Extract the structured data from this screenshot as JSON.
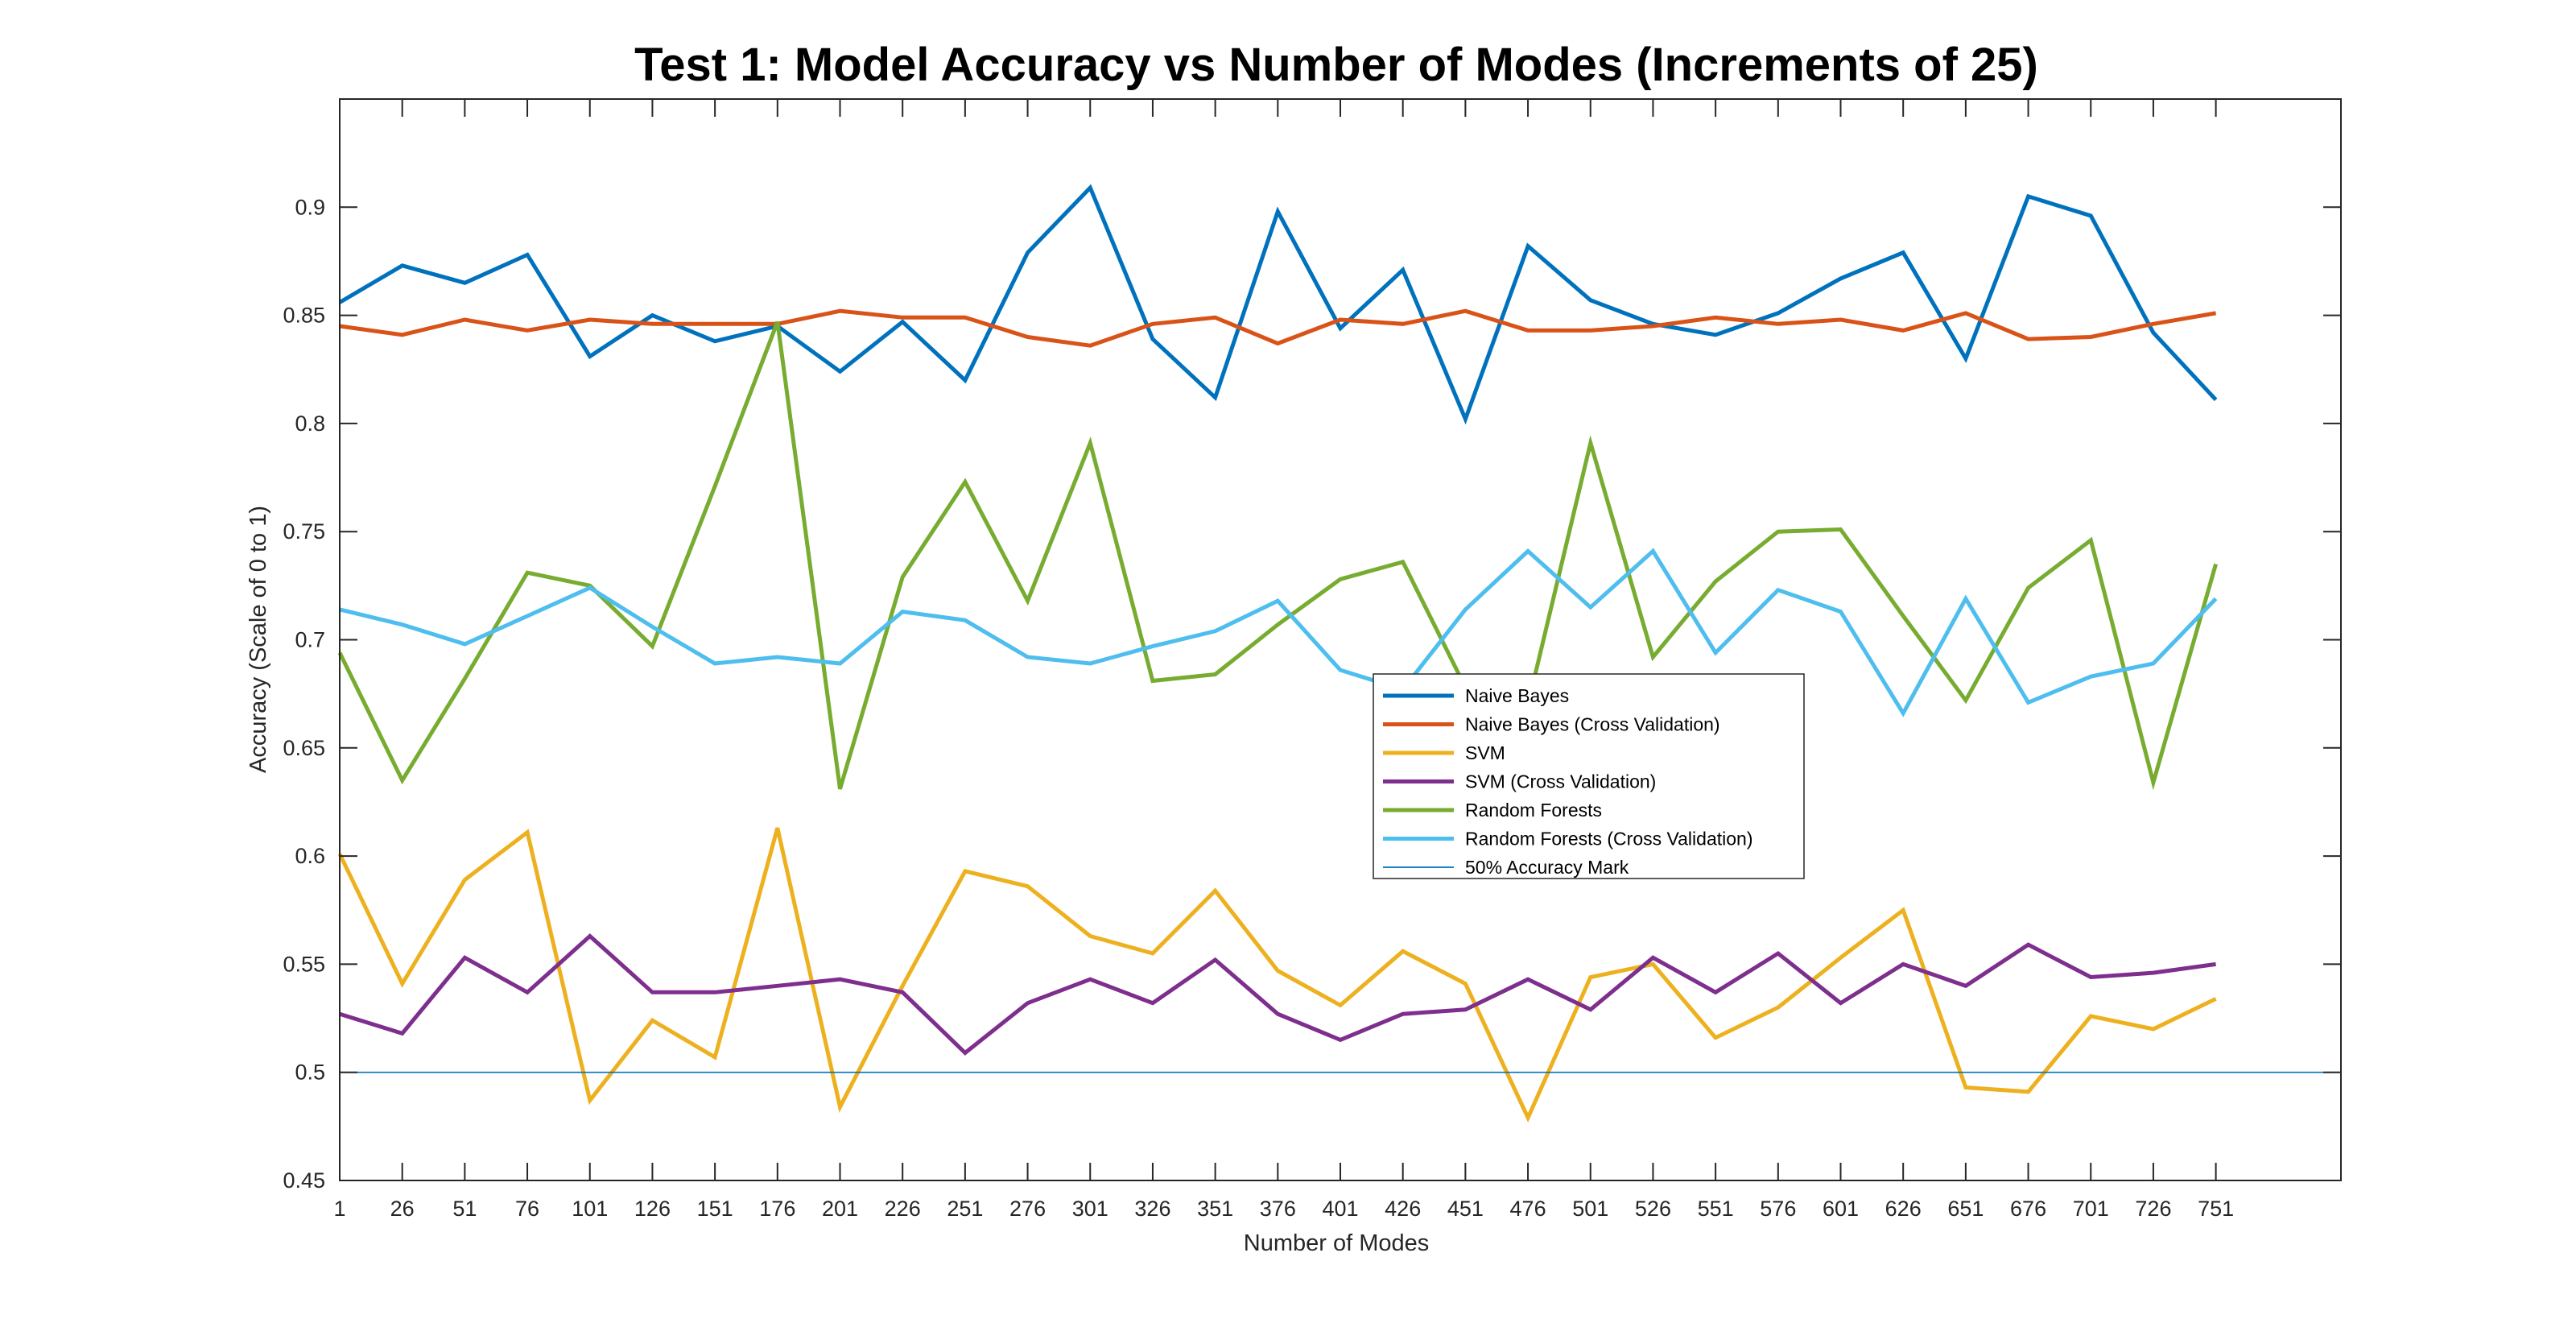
{
  "chart_data": {
    "type": "line",
    "title": "Test 1: Model Accuracy vs Number of Modes (Increments of 25)",
    "xlabel": "Number of Modes",
    "ylabel": "Accuracy (Scale of 0 to 1)",
    "xlim": [
      1,
      801
    ],
    "ylim": [
      0.45,
      0.95
    ],
    "x_ticks": [
      1,
      26,
      51,
      76,
      101,
      126,
      151,
      176,
      201,
      226,
      251,
      276,
      301,
      326,
      351,
      376,
      401,
      426,
      451,
      476,
      501,
      526,
      551,
      576,
      601,
      626,
      651,
      676,
      701,
      726,
      751
    ],
    "y_ticks": [
      0.45,
      0.5,
      0.55,
      0.6,
      0.65,
      0.7,
      0.75,
      0.8,
      0.85,
      0.9
    ],
    "y_tick_labels": [
      "0.45",
      "0.5",
      "0.55",
      "0.6",
      "0.65",
      "0.7",
      "0.75",
      "0.8",
      "0.85",
      "0.9"
    ],
    "grid": false,
    "legend_position": "center",
    "x": [
      1,
      26,
      51,
      76,
      101,
      126,
      151,
      176,
      201,
      226,
      251,
      276,
      301,
      326,
      351,
      376,
      401,
      426,
      451,
      476,
      501,
      526,
      551,
      576,
      601,
      626,
      651,
      676,
      701,
      726,
      751
    ],
    "series": [
      {
        "name": "Naive Bayes",
        "color": "#0072BD",
        "values": [
          0.856,
          0.873,
          0.865,
          0.878,
          0.831,
          0.85,
          0.838,
          0.845,
          0.824,
          0.847,
          0.82,
          0.879,
          0.909,
          0.839,
          0.812,
          0.898,
          0.844,
          0.871,
          0.802,
          0.882,
          0.857,
          0.846,
          0.841,
          0.851,
          0.867,
          0.879,
          0.83,
          0.905,
          0.896,
          0.842,
          0.811
        ]
      },
      {
        "name": "Naive Bayes (Cross Validation)",
        "color": "#D95319",
        "values": [
          0.845,
          0.841,
          0.848,
          0.843,
          0.848,
          0.846,
          0.846,
          0.846,
          0.852,
          0.849,
          0.849,
          0.84,
          0.836,
          0.846,
          0.849,
          0.837,
          0.848,
          0.846,
          0.852,
          0.843,
          0.843,
          0.845,
          0.849,
          0.846,
          0.848,
          0.843,
          0.851,
          0.839,
          0.84,
          0.846,
          0.851
        ]
      },
      {
        "name": "SVM",
        "color": "#EDB120",
        "values": [
          0.601,
          0.541,
          0.589,
          0.611,
          0.487,
          0.524,
          0.507,
          0.613,
          0.484,
          0.54,
          0.593,
          0.586,
          0.563,
          0.555,
          0.584,
          0.547,
          0.531,
          0.556,
          0.541,
          0.479,
          0.544,
          0.55,
          0.516,
          0.53,
          0.553,
          0.575,
          0.493,
          0.491,
          0.526,
          0.52,
          0.534
        ]
      },
      {
        "name": "SVM (Cross Validation)",
        "color": "#7E2F8E",
        "values": [
          0.527,
          0.518,
          0.553,
          0.537,
          0.563,
          0.537,
          0.537,
          0.54,
          0.543,
          0.537,
          0.509,
          0.532,
          0.543,
          0.532,
          0.552,
          0.527,
          0.515,
          0.527,
          0.529,
          0.543,
          0.529,
          0.553,
          0.537,
          0.555,
          0.532,
          0.55,
          0.54,
          0.559,
          0.544,
          0.546,
          0.55
        ]
      },
      {
        "name": "Random Forests",
        "color": "#77AC30",
        "values": [
          0.694,
          0.635,
          0.682,
          0.731,
          0.725,
          0.697,
          0.771,
          0.847,
          0.631,
          0.729,
          0.773,
          0.718,
          0.791,
          0.681,
          0.684,
          0.707,
          0.728,
          0.736,
          0.678,
          0.67,
          0.791,
          0.692,
          0.727,
          0.75,
          0.751,
          0.711,
          0.672,
          0.724,
          0.746,
          0.634,
          0.735
        ]
      },
      {
        "name": "Random Forests (Cross Validation)",
        "color": "#4DBEEE",
        "values": [
          0.714,
          0.707,
          0.698,
          0.711,
          0.724,
          0.706,
          0.689,
          0.692,
          0.689,
          0.713,
          0.709,
          0.692,
          0.689,
          0.697,
          0.704,
          0.718,
          0.686,
          0.677,
          0.714,
          0.741,
          0.715,
          0.741,
          0.694,
          0.723,
          0.713,
          0.666,
          0.719,
          0.671,
          0.683,
          0.689,
          0.719
        ]
      },
      {
        "name": "50% Accuracy Mark",
        "color": "#0072BD",
        "thin": true,
        "x_range": [
          1,
          801
        ],
        "value": 0.5
      }
    ]
  }
}
